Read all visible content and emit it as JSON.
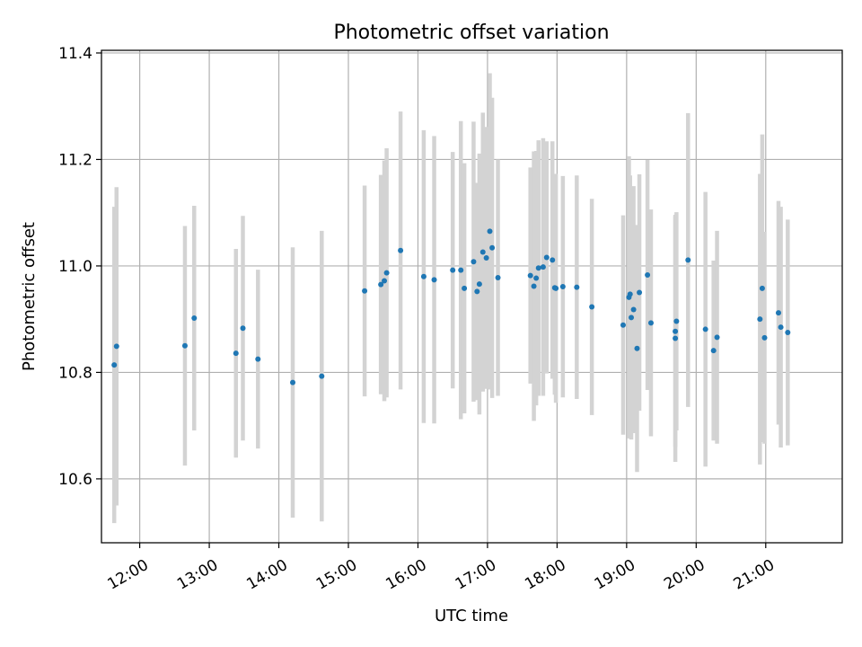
{
  "chart_data": {
    "type": "scatter",
    "title": "Photometric offset variation",
    "xlabel": "UTC time",
    "ylabel": "Photometric offset",
    "xlim": [
      "11:27",
      "22:06"
    ],
    "ylim": [
      10.48,
      11.405
    ],
    "x_ticks": [
      "12:00",
      "13:00",
      "14:00",
      "15:00",
      "16:00",
      "17:00",
      "18:00",
      "19:00",
      "20:00",
      "21:00"
    ],
    "y_ticks": [
      "10.6",
      "10.8",
      "11.0",
      "11.2",
      "11.4"
    ],
    "grid": true,
    "colors": {
      "point": "#1f77b4",
      "errorbar": "#d3d3d3",
      "grid": "#b0b0b0"
    },
    "series": [
      {
        "x": [
          "11:38",
          "11:40",
          "12:39",
          "12:47",
          "13:23",
          "13:29",
          "13:42",
          "14:12",
          "14:37",
          "15:14",
          "15:28",
          "15:31",
          "15:33",
          "15:45",
          "16:05",
          "16:14",
          "16:30",
          "16:37",
          "16:40",
          "16:48",
          "16:51",
          "16:53",
          "16:56",
          "16:59",
          "17:02",
          "17:04",
          "17:09",
          "17:37",
          "17:40",
          "17:42",
          "17:44",
          "17:48",
          "17:51",
          "17:56",
          "17:58",
          "17:59",
          "18:05",
          "18:17",
          "18:30",
          "18:57",
          "19:02",
          "19:03",
          "19:04",
          "19:06",
          "19:09",
          "19:11",
          "19:18",
          "19:21",
          "19:42",
          "19:42",
          "19:43",
          "19:53",
          "20:08",
          "20:15",
          "20:18",
          "20:55",
          "20:57",
          "20:59",
          "21:11",
          "21:13",
          "21:19"
        ],
        "y": [
          10.814,
          10.849,
          10.85,
          10.902,
          10.836,
          10.883,
          10.825,
          10.781,
          10.793,
          10.953,
          10.965,
          10.972,
          10.987,
          11.029,
          10.98,
          10.974,
          10.992,
          10.992,
          10.958,
          11.008,
          10.952,
          10.966,
          11.026,
          11.015,
          11.065,
          11.034,
          10.978,
          10.982,
          10.962,
          10.977,
          10.996,
          10.998,
          11.016,
          11.011,
          10.959,
          10.958,
          10.961,
          10.96,
          10.923,
          10.889,
          10.941,
          10.947,
          10.903,
          10.918,
          10.845,
          10.95,
          10.983,
          10.893,
          10.864,
          10.877,
          10.896,
          11.011,
          10.881,
          10.841,
          10.866,
          10.9,
          10.958,
          10.865,
          10.912,
          10.885,
          10.875
        ],
        "err": [
          0.297,
          0.299,
          0.225,
          0.211,
          0.196,
          0.211,
          0.168,
          0.254,
          0.273,
          0.198,
          0.206,
          0.226,
          0.234,
          0.261,
          0.275,
          0.27,
          0.222,
          0.28,
          0.235,
          0.263,
          0.204,
          0.245,
          0.262,
          0.246,
          0.297,
          0.282,
          0.222,
          0.203,
          0.253,
          0.239,
          0.24,
          0.242,
          0.218,
          0.223,
          0.201,
          0.215,
          0.208,
          0.21,
          0.203,
          0.206,
          0.265,
          0.223,
          0.229,
          0.232,
          0.232,
          0.222,
          0.216,
          0.213,
          0.232,
          0.217,
          0.205,
          0.276,
          0.258,
          0.169,
          0.2,
          0.273,
          0.289,
          0.199,
          0.21,
          0.226,
          0.212
        ]
      }
    ]
  }
}
